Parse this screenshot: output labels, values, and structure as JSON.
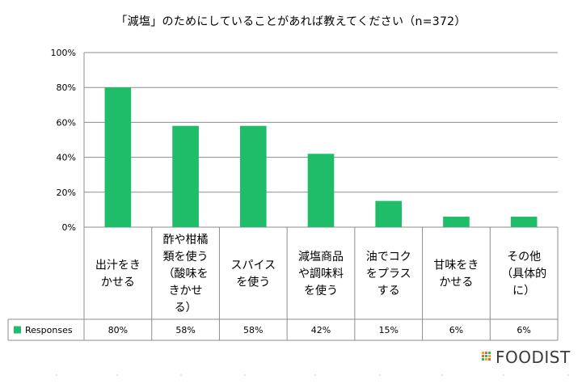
{
  "chart_data": {
    "type": "bar",
    "title": "「減塩」のためにしていることがあれば教えてください（n=372）",
    "categories": [
      [
        "出汁をき",
        "かせる"
      ],
      [
        "酢や柑橘",
        "類を使う",
        "（酸味を",
        "きかせ",
        "る）"
      ],
      [
        "スパイス",
        "を使う"
      ],
      [
        "減塩商品",
        "や調味料",
        "を使う"
      ],
      [
        "油でコク",
        "をプラス",
        "する"
      ],
      [
        "甘味をき",
        "かせる"
      ],
      [
        "その他",
        "（具体的",
        "に）"
      ]
    ],
    "series": [
      {
        "name": "Responses",
        "values": [
          80,
          58,
          58,
          42,
          15,
          6,
          6
        ],
        "labels": [
          "80%",
          "58%",
          "58%",
          "42%",
          "15%",
          "6%",
          "6%"
        ],
        "color": "#1fbd6a"
      }
    ],
    "yticks": [
      "0%",
      "20%",
      "40%",
      "60%",
      "80%",
      "100%"
    ],
    "ylim": [
      0,
      100
    ],
    "grid": true,
    "legend": "data-table-left"
  },
  "brand": {
    "logo_text": "FOODIST"
  }
}
